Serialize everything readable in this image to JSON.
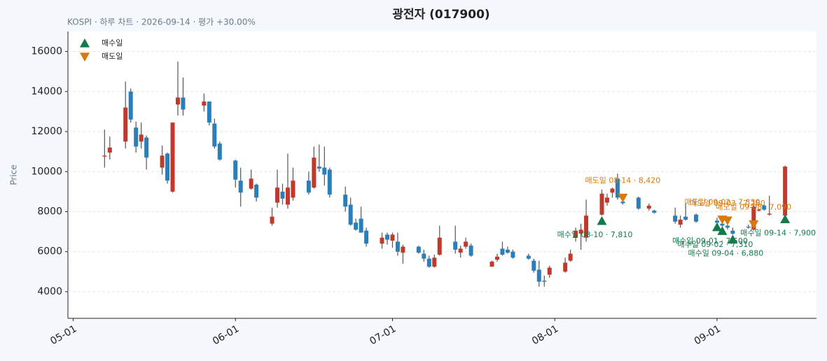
{
  "chart_data": {
    "type": "candlestick",
    "title": "광전자 (017900)",
    "subtitle": "KOSPI · 하루 차트 · 2026-09-14 · 평가 +30.00%",
    "y_label": "Price",
    "x": [
      "05-07",
      "05-08",
      "05-11",
      "05-12",
      "05-13",
      "05-14",
      "05-15",
      "05-18",
      "05-19",
      "05-20",
      "05-21",
      "05-22",
      "05-26",
      "05-27",
      "05-28",
      "05-29",
      "06-01",
      "06-02",
      "06-04",
      "06-05",
      "06-08",
      "06-09",
      "06-10",
      "06-11",
      "06-12",
      "06-15",
      "06-16",
      "06-17",
      "06-18",
      "06-19",
      "06-22",
      "06-23",
      "06-24",
      "06-25",
      "06-26",
      "06-29",
      "06-30",
      "07-01",
      "07-02",
      "07-03",
      "07-06",
      "07-07",
      "07-08",
      "07-09",
      "07-10",
      "07-13",
      "07-14",
      "07-15",
      "07-16",
      "07-20",
      "07-21",
      "07-22",
      "07-23",
      "07-24",
      "07-27",
      "07-28",
      "07-29",
      "07-30",
      "07-31",
      "08-03",
      "08-04",
      "08-05",
      "08-06",
      "08-07",
      "08-10",
      "08-11",
      "08-12",
      "08-13",
      "08-14",
      "08-17",
      "08-19",
      "08-20",
      "08-24",
      "08-25",
      "08-26",
      "08-28",
      "09-01",
      "09-02",
      "09-03",
      "09-04",
      "09-07",
      "09-08",
      "09-09",
      "09-10",
      "09-11",
      "09-14"
    ],
    "open": [
      10750,
      10950,
      11500,
      14000,
      12200,
      11500,
      11700,
      10200,
      10900,
      9000,
      13350,
      13700,
      13300,
      13500,
      12400,
      11400,
      10550,
      9550,
      9150,
      9350,
      7400,
      8450,
      9000,
      8350,
      8700,
      9550,
      9200,
      10250,
      10200,
      10100,
      8850,
      8350,
      7450,
      7650,
      7050,
      6400,
      6850,
      6550,
      6500,
      5950,
      6250,
      5900,
      5650,
      5250,
      5850,
      6500,
      5950,
      6250,
      6300,
      5250,
      5600,
      6150,
      6100,
      6000,
      5800,
      5550,
      5100,
      4550,
      4850,
      5000,
      5550,
      6700,
      6900,
      6700,
      7850,
      8450,
      8950,
      9650,
      8500,
      8700,
      8150,
      8050,
      7800,
      7350,
      7750,
      7850,
      7550,
      7400,
      7300,
      7050,
      7250,
      7100,
      8050,
      8300,
      7850,
      7800
    ],
    "high": [
      12100,
      11750,
      14500,
      14150,
      12500,
      12450,
      11800,
      11300,
      10950,
      12450,
      15500,
      14700,
      13900,
      13500,
      12650,
      11500,
      10600,
      10200,
      10100,
      9400,
      8200,
      10100,
      9400,
      10900,
      10200,
      10000,
      11250,
      11350,
      11250,
      10200,
      9250,
      8700,
      7650,
      8250,
      7200,
      6950,
      6950,
      6950,
      6950,
      6350,
      6300,
      6100,
      5800,
      5850,
      7300,
      7300,
      6300,
      6700,
      6400,
      5550,
      5900,
      6500,
      6250,
      6100,
      5900,
      5650,
      5550,
      4800,
      5300,
      5700,
      6100,
      7200,
      7400,
      8600,
      9100,
      8900,
      9200,
      9900,
      8850,
      8750,
      8400,
      8100,
      8200,
      7800,
      8400,
      7900,
      7700,
      7500,
      7400,
      7200,
      7350,
      8300,
      8150,
      8350,
      8800,
      10300
    ],
    "low": [
      10200,
      10600,
      11150,
      12450,
      10950,
      11150,
      10100,
      9850,
      9400,
      8950,
      12800,
      12800,
      13000,
      12300,
      11150,
      10550,
      9200,
      8250,
      9100,
      8500,
      7300,
      8200,
      8350,
      8150,
      8550,
      8850,
      9150,
      10000,
      9300,
      8700,
      8000,
      7300,
      7050,
      6950,
      6250,
      6150,
      6350,
      6200,
      5800,
      5400,
      5900,
      5500,
      5200,
      5200,
      5800,
      5900,
      5700,
      6150,
      5750,
      5250,
      5500,
      5800,
      5900,
      5650,
      5600,
      4950,
      4250,
      4250,
      4700,
      4950,
      5500,
      6500,
      6100,
      6500,
      7800,
      8300,
      8700,
      8600,
      8350,
      8100,
      8050,
      7900,
      7400,
      7200,
      7550,
      7450,
      7400,
      7250,
      7100,
      6850,
      7150,
      7050,
      8000,
      8050,
      7800,
      7750
    ],
    "close": [
      10800,
      11200,
      13200,
      12600,
      11250,
      11850,
      10700,
      10800,
      9550,
      12450,
      13700,
      13100,
      13500,
      12450,
      11250,
      10600,
      9600,
      8950,
      9650,
      8700,
      7750,
      9200,
      8650,
      9200,
      9550,
      8950,
      10700,
      10150,
      9850,
      8850,
      8250,
      7350,
      7100,
      6950,
      6400,
      6700,
      6600,
      6850,
      6000,
      6250,
      5950,
      5650,
      5250,
      5700,
      6700,
      6100,
      6150,
      6500,
      5800,
      5500,
      5750,
      5850,
      5950,
      5700,
      5650,
      5050,
      4500,
      4500,
      5200,
      5450,
      5900,
      7050,
      7100,
      7800,
      8900,
      8700,
      9150,
      8700,
      8420,
      8150,
      8300,
      7950,
      7500,
      7600,
      7600,
      7500,
      7450,
      7300,
      7200,
      6900,
      7200,
      8250,
      8100,
      8100,
      7900,
      10250
    ],
    "up_color": "#c0392b",
    "down_color": "#2b7fb8",
    "series": [
      {
        "name": "매수일",
        "color": "#137a4c",
        "marker": "triangle-up",
        "x": [
          "08-10",
          "09-01",
          "09-02",
          "09-04",
          "09-14"
        ],
        "values": [
          7810,
          7500,
          7310,
          6880,
          7900
        ],
        "value_labels": [
          "매수일 08-10 · 7,810",
          "매수일 09-01 · 7,500",
          "매수일 09-02 · 7,310",
          "매수일 09-04 · 6,880",
          "매수일 09-14 · 7,900"
        ]
      },
      {
        "name": "매도일",
        "color": "#d9790a",
        "marker": "triangle-down",
        "x": [
          "08-14",
          "09-02",
          "09-03",
          "09-08"
        ],
        "values": [
          8420,
          7330,
          7280,
          7090
        ],
        "value_labels": [
          "매도일 08-14 · 8,420",
          "매도일 09-02 · 7,330",
          "매도일 09-03 · 7,280",
          "매도일 09-08 · 7,090"
        ]
      }
    ],
    "xlim": [
      "04-30",
      "09-20"
    ],
    "xticks": [
      "05-01",
      "06-01",
      "07-01",
      "08-01",
      "09-01"
    ],
    "ylim": [
      2670,
      17000
    ],
    "yticks": [
      4000,
      6000,
      8000,
      10000,
      12000,
      14000,
      16000
    ],
    "grid": true,
    "legend": "upper left"
  }
}
